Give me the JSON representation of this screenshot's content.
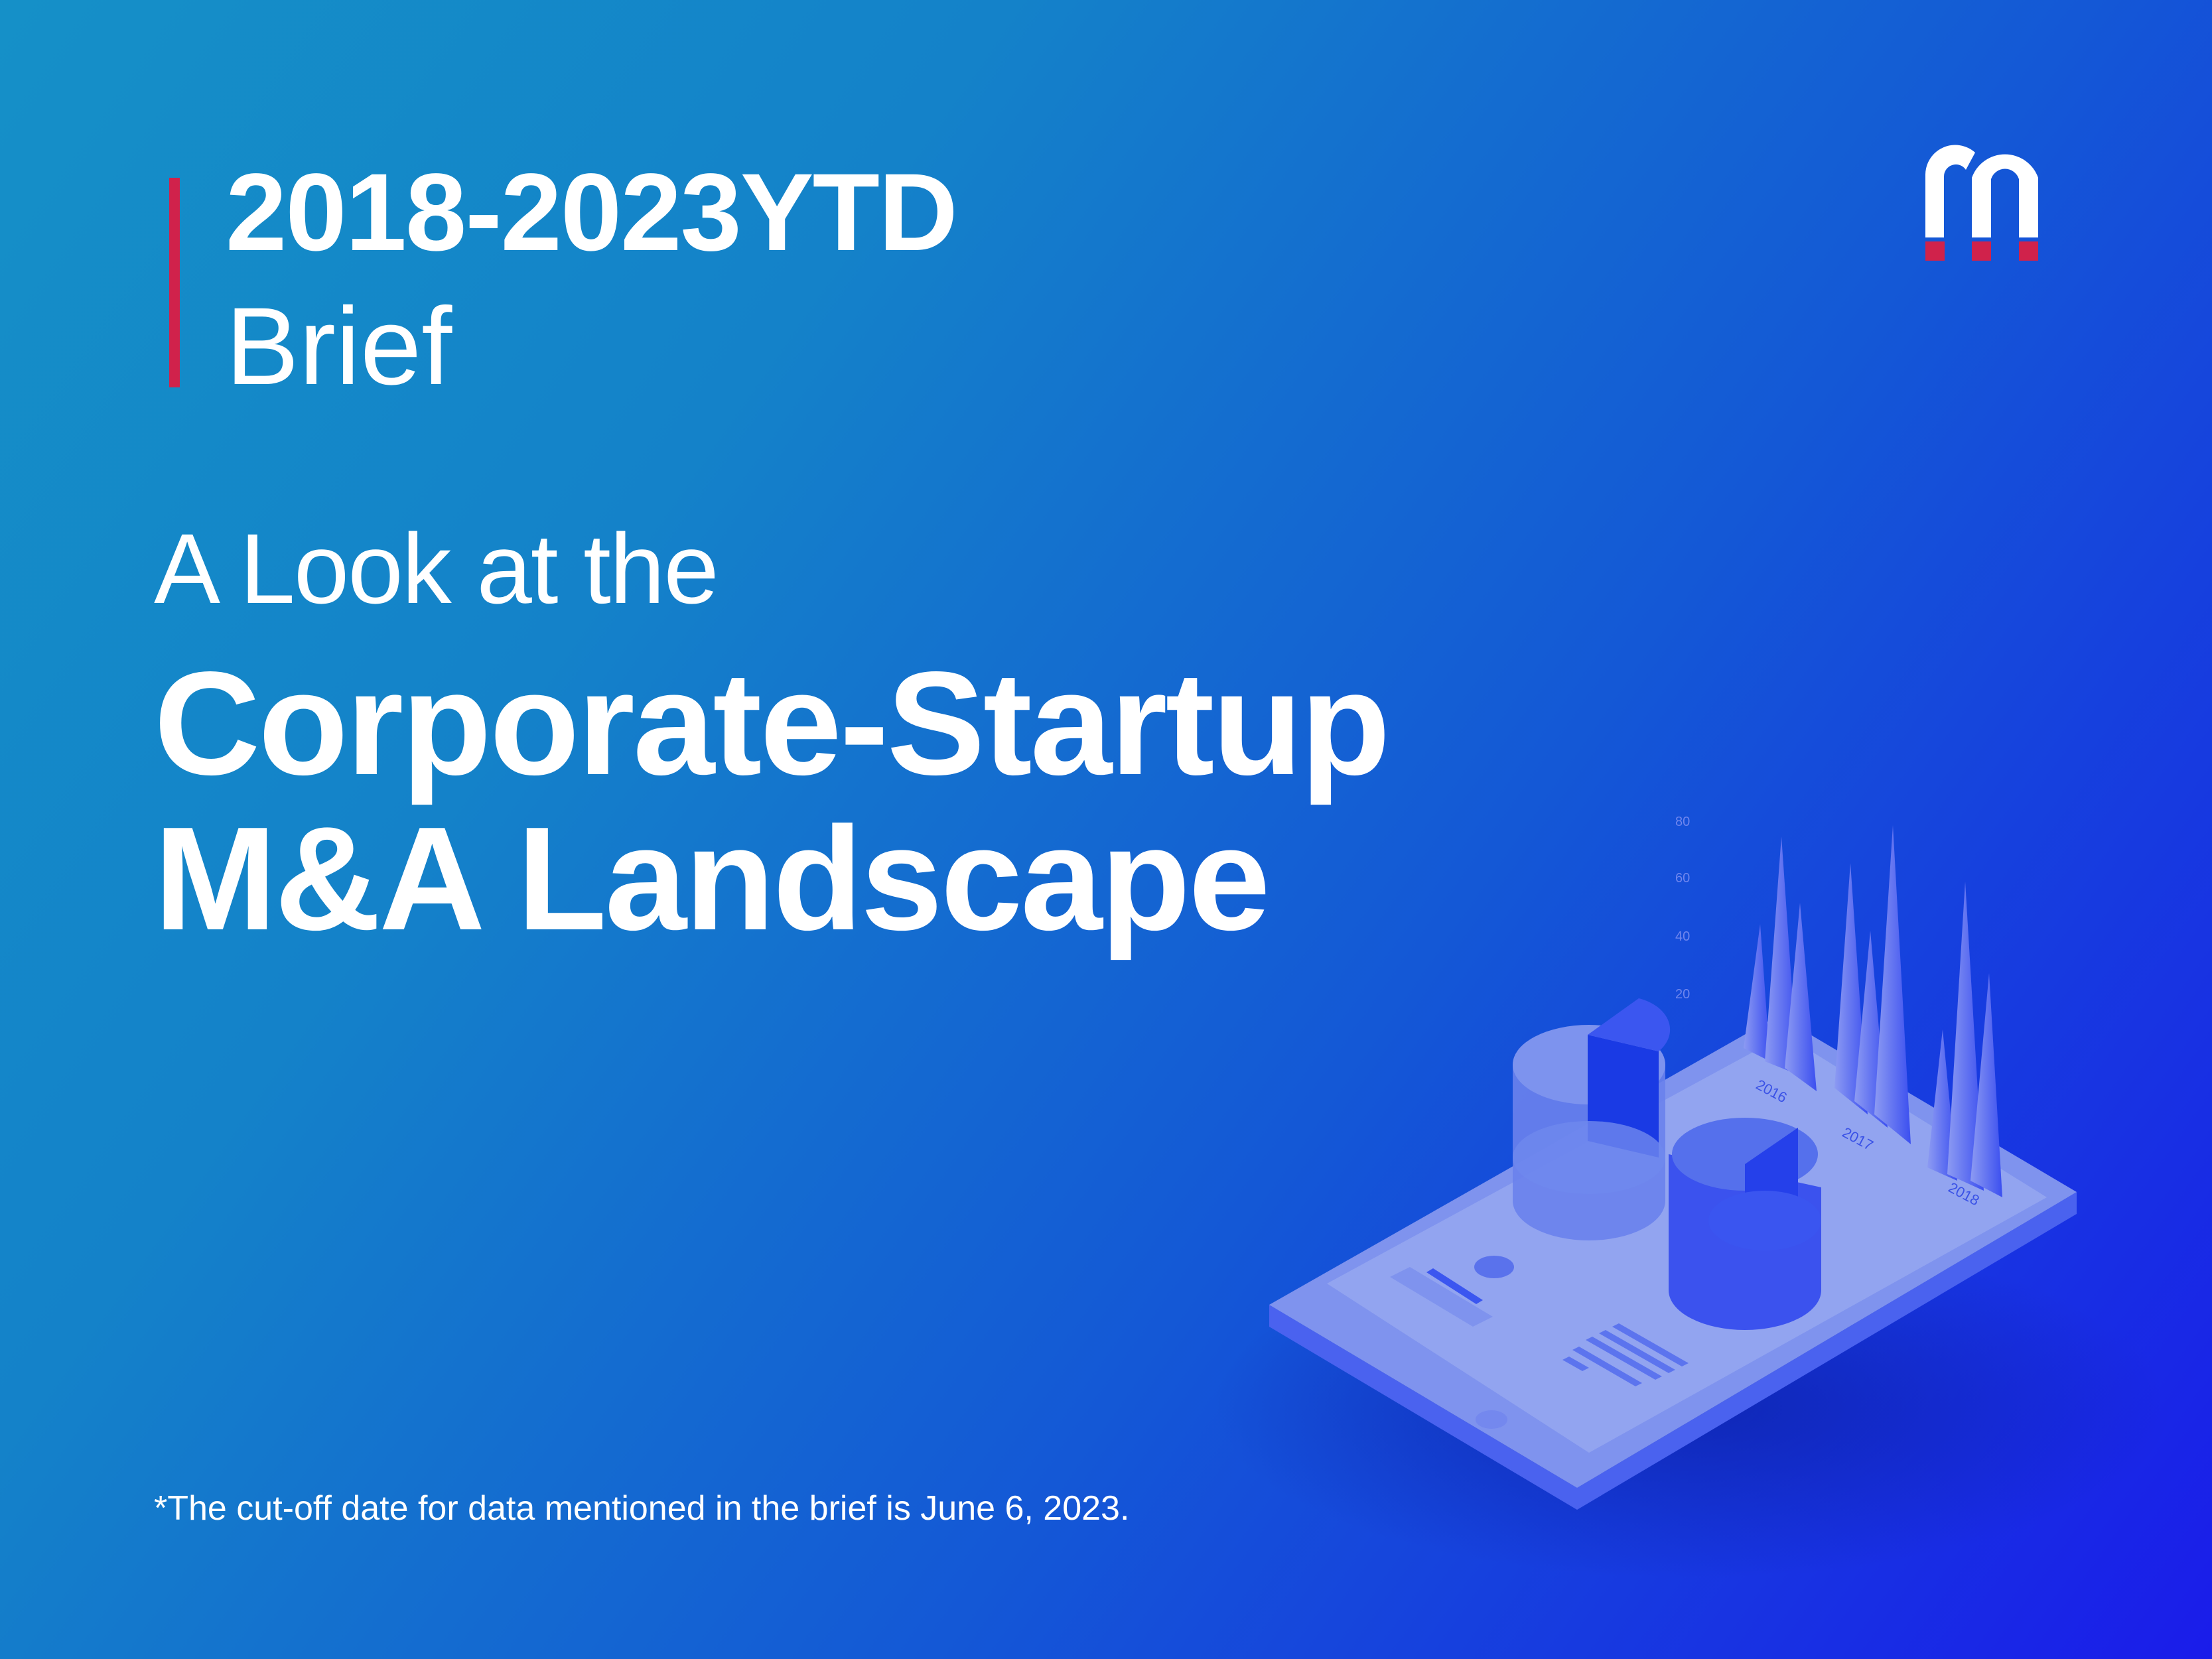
{
  "header": {
    "years": "2018-2023YTD",
    "subtitle": "Brief"
  },
  "title": {
    "lead": "A Look at the",
    "line1": "Corporate-Startup",
    "line2": "M&A Landscape"
  },
  "footnote": "*The cut-off date for data mentioned in the brief is June 6, 2023.",
  "logo": {
    "icon": "m-magnet-logo",
    "mark_color": "#ffffff",
    "dot_color": "#d0224b"
  },
  "illustration": {
    "icon": "isometric-tablet-charts",
    "axis_labels": [
      "80",
      "60",
      "40",
      "20"
    ],
    "year_labels": [
      "2016",
      "2017",
      "2018"
    ]
  },
  "colors": {
    "accent": "#d0224b",
    "background_start": "#1590c8",
    "background_end": "#1a1cea"
  }
}
